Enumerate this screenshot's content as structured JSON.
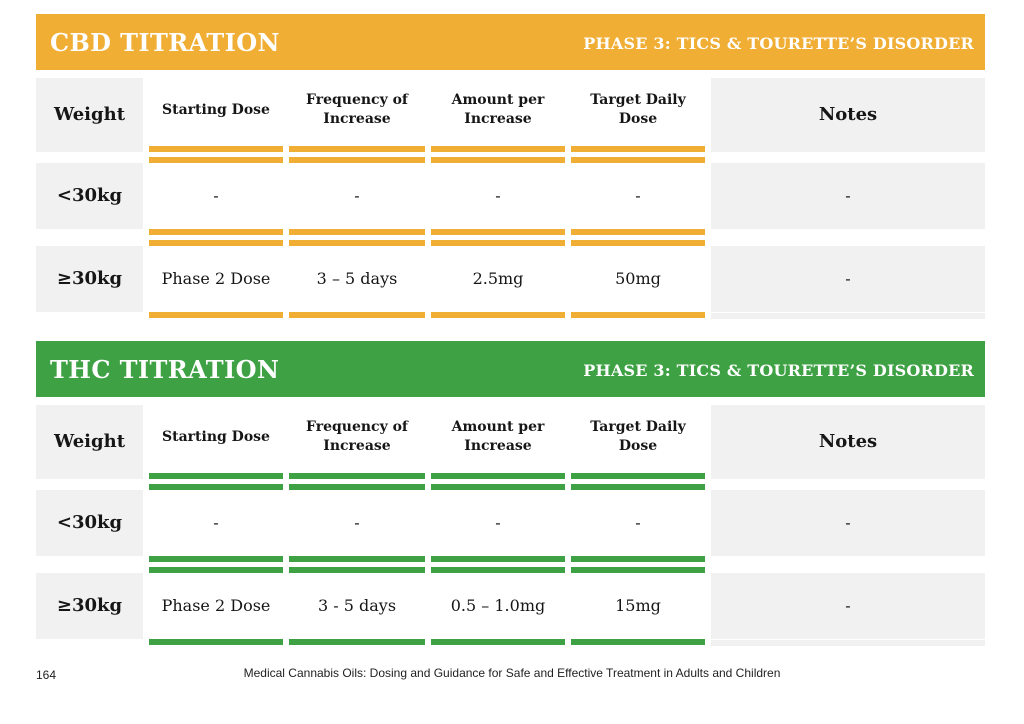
{
  "colors": {
    "cbd_accent": "#F0AE34",
    "thc_accent": "#3EA144",
    "cell_gray": "#F1F1F1"
  },
  "tables": [
    {
      "name": "cbd",
      "title": "CBD TITRATION",
      "subtitle": "PHASE 3: TICS & TOURETTE’S DISORDER",
      "accent_color": "#F0AE34",
      "columns": [
        "Weight",
        "Starting Dose",
        "Frequency of Increase",
        "Amount per Increase",
        "Target Daily Dose",
        "Notes"
      ],
      "rows": [
        {
          "weight": "<30kg",
          "starting_dose": "-",
          "frequency_of_increase": "-",
          "amount_per_increase": "-",
          "target_daily_dose": "-",
          "notes": "-"
        },
        {
          "weight": "≥30kg",
          "starting_dose": "Phase 2 Dose",
          "frequency_of_increase": "3 – 5 days",
          "amount_per_increase": "2.5mg",
          "target_daily_dose": "50mg",
          "notes": "-"
        }
      ]
    },
    {
      "name": "thc",
      "title": "THC TITRATION",
      "subtitle": "PHASE 3: TICS & TOURETTE’S DISORDER",
      "accent_color": "#3EA144",
      "columns": [
        "Weight",
        "Starting Dose",
        "Frequency of Increase",
        "Amount per Increase",
        "Target Daily Dose",
        "Notes"
      ],
      "rows": [
        {
          "weight": "<30kg",
          "starting_dose": "-",
          "frequency_of_increase": "-",
          "amount_per_increase": "-",
          "target_daily_dose": "-",
          "notes": "-"
        },
        {
          "weight": "≥30kg",
          "starting_dose": "Phase 2 Dose",
          "frequency_of_increase": "3 - 5 days",
          "amount_per_increase": "0.5 – 1.0mg",
          "target_daily_dose": "15mg",
          "notes": "-"
        }
      ]
    }
  ],
  "footer": {
    "page_number": "164",
    "book_title": "Medical Cannabis Oils: Dosing and Guidance for Safe and Effective Treatment in Adults and Children"
  }
}
